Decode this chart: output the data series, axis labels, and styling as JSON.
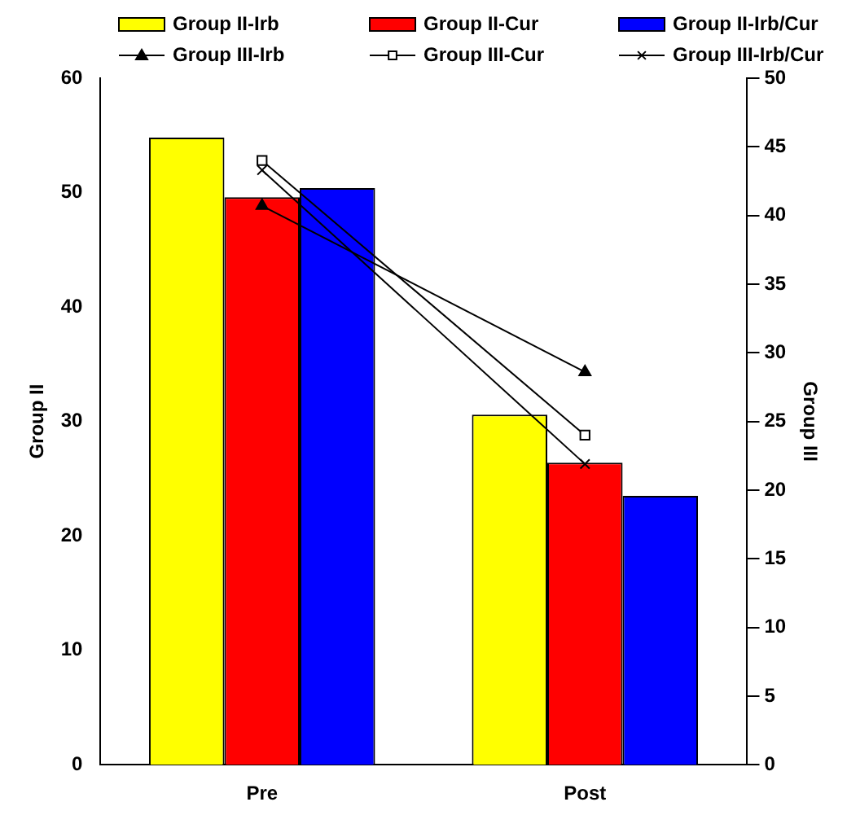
{
  "chart_data": {
    "type": "bar",
    "categories": [
      "Pre",
      "Post"
    ],
    "ylabel": "Group II",
    "y2label": "Group III",
    "ylim": [
      0,
      60
    ],
    "yticks": [
      0,
      10,
      20,
      30,
      40,
      50,
      60
    ],
    "y2lim": [
      0,
      50
    ],
    "y2ticks": [
      0,
      5,
      10,
      15,
      20,
      25,
      30,
      35,
      40,
      45,
      50
    ],
    "grid": false,
    "legend": "top",
    "series": [
      {
        "name": "Group II-Irb",
        "color": "#ffff00",
        "values": [
          54.8,
          30.6
        ]
      },
      {
        "name": "Group II-Cur",
        "color": "#ff0000",
        "values": [
          49.6,
          26.4
        ]
      },
      {
        "name": "Group II-Irb/Cur",
        "color": "#0000ff",
        "values": [
          50.4,
          23.5
        ]
      },
      {
        "name": "Group III-Irb",
        "type": "line",
        "axis": "y2",
        "color": "#000000",
        "marker": "triangle",
        "values": [
          40.7,
          28.6
        ]
      },
      {
        "name": "Group III-Cur",
        "type": "line",
        "axis": "y2",
        "color": "#000000",
        "marker": "square",
        "values": [
          44.0,
          24.0
        ]
      },
      {
        "name": "Group III-Irb/Cur",
        "type": "line",
        "axis": "y2",
        "color": "#000000",
        "marker": "cross",
        "values": [
          43.3,
          21.9
        ]
      }
    ]
  }
}
